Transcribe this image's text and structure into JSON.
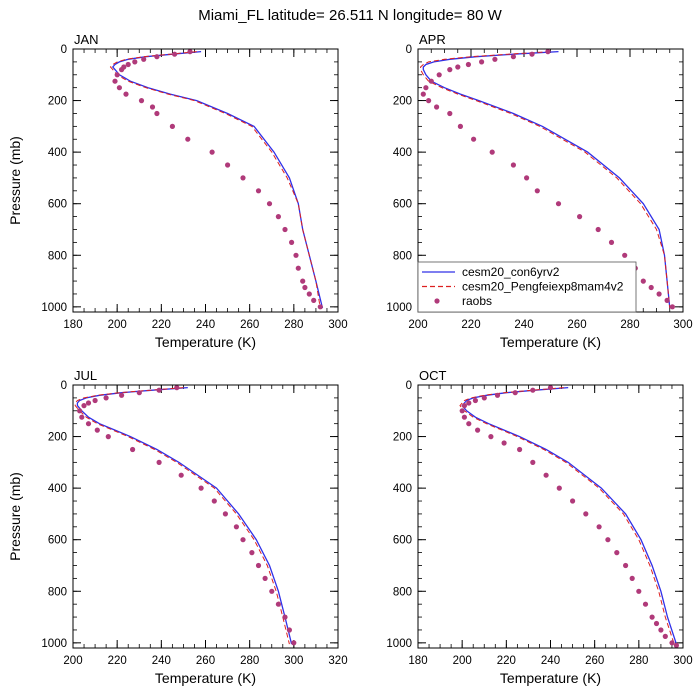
{
  "figure": {
    "title": "Miami_FL  latitude= 26.511 N longitude= 80 W"
  },
  "legend": {
    "panel": 1,
    "entries": [
      {
        "label": "cesm20_con6yrv2",
        "style": "solid",
        "color": "#3030e8"
      },
      {
        "label": "cesm20_Pengfeiexp8mam4v2",
        "style": "dashed",
        "color": "#dd2020"
      },
      {
        "label": "raobs",
        "style": "marker",
        "color": "#b03a7a"
      }
    ]
  },
  "chart_data": [
    {
      "type": "line",
      "title": "JAN",
      "xlabel": "Temperature (K)",
      "ylabel": "Pressure (mb)",
      "xlim": [
        180,
        300
      ],
      "ylim": [
        1020,
        0
      ],
      "xticks": [
        180,
        200,
        220,
        240,
        260,
        280,
        300
      ],
      "yticks": [
        0,
        200,
        400,
        600,
        800,
        1000
      ],
      "series": [
        {
          "name": "cesm20_con6yrv2",
          "x": [
            238,
            225,
            213,
            205,
            201,
            199,
            198,
            199,
            201,
            206,
            214,
            224,
            236,
            250,
            262,
            271,
            278,
            282,
            284,
            287,
            290,
            293
          ],
          "y": [
            10,
            20,
            30,
            40,
            50,
            60,
            70,
            80,
            100,
            125,
            150,
            175,
            200,
            250,
            300,
            400,
            500,
            600,
            700,
            800,
            900,
            1005
          ]
        },
        {
          "name": "cesm20_Pengfeiexp8mam4v2",
          "x": [
            236,
            224,
            212,
            204,
            200,
            198,
            197,
            198,
            200,
            205,
            213,
            223,
            235,
            249,
            261,
            270,
            277,
            282,
            284,
            287,
            290,
            292
          ],
          "y": [
            10,
            20,
            30,
            40,
            50,
            60,
            70,
            80,
            100,
            125,
            150,
            175,
            200,
            250,
            300,
            400,
            500,
            600,
            700,
            800,
            900,
            1005
          ]
        },
        {
          "name": "raobs",
          "x": [
            233,
            226,
            218,
            212,
            208,
            205,
            203,
            202,
            200,
            199,
            201,
            204,
            211,
            216,
            218,
            225,
            232,
            243,
            250,
            257,
            264,
            269,
            273,
            276,
            279,
            281,
            282,
            284,
            285,
            287,
            289,
            292
          ],
          "y": [
            10,
            20,
            30,
            40,
            50,
            60,
            70,
            80,
            100,
            125,
            150,
            175,
            200,
            225,
            250,
            300,
            350,
            400,
            450,
            500,
            550,
            600,
            650,
            700,
            750,
            800,
            850,
            900,
            925,
            950,
            975,
            1000
          ]
        }
      ]
    },
    {
      "type": "line",
      "title": "APR",
      "xlabel": "Temperature (K)",
      "ylabel": "",
      "xlim": [
        200,
        300
      ],
      "ylim": [
        1020,
        0
      ],
      "xticks": [
        200,
        220,
        240,
        260,
        280,
        300
      ],
      "yticks": [
        0,
        200,
        400,
        600,
        800,
        1000
      ],
      "series": [
        {
          "name": "cesm20_con6yrv2",
          "x": [
            253,
            236,
            222,
            212,
            206,
            203,
            202,
            202,
            203,
            205,
            210,
            216,
            223,
            236,
            247,
            264,
            276,
            285,
            291,
            293,
            294,
            295
          ],
          "y": [
            10,
            20,
            30,
            40,
            50,
            60,
            70,
            80,
            100,
            125,
            150,
            175,
            200,
            250,
            300,
            400,
            500,
            600,
            700,
            800,
            900,
            1005
          ]
        },
        {
          "name": "cesm20_Pengfeiexp8mam4v2",
          "x": [
            250,
            234,
            220,
            210,
            204,
            202,
            201,
            201,
            202,
            204,
            209,
            215,
            222,
            235,
            246,
            263,
            275,
            284,
            290,
            293,
            294,
            295
          ],
          "y": [
            10,
            20,
            30,
            40,
            50,
            60,
            70,
            80,
            100,
            125,
            150,
            175,
            200,
            250,
            300,
            400,
            500,
            600,
            700,
            800,
            900,
            1005
          ]
        },
        {
          "name": "raobs",
          "x": [
            249,
            243,
            236,
            229,
            224,
            219,
            215,
            212,
            208,
            205,
            203,
            202,
            204,
            207,
            212,
            216,
            221,
            228,
            236,
            241,
            245,
            253,
            261,
            268,
            273,
            278,
            282,
            285,
            288,
            291,
            294,
            296
          ],
          "y": [
            10,
            20,
            30,
            40,
            50,
            60,
            70,
            80,
            100,
            125,
            150,
            175,
            200,
            225,
            250,
            300,
            350,
            400,
            450,
            500,
            550,
            600,
            650,
            700,
            750,
            800,
            850,
            900,
            925,
            950,
            975,
            1000
          ]
        }
      ]
    },
    {
      "type": "line",
      "title": "JUL",
      "xlabel": "Temperature (K)",
      "ylabel": "Pressure (mb)",
      "xlim": [
        200,
        320
      ],
      "ylim": [
        1020,
        0
      ],
      "xticks": [
        200,
        220,
        240,
        260,
        280,
        300,
        320
      ],
      "yticks": [
        0,
        200,
        400,
        600,
        800,
        1000
      ],
      "series": [
        {
          "name": "cesm20_con6yrv2",
          "x": [
            252,
            236,
            222,
            212,
            206,
            203,
            202,
            202,
            204,
            207,
            212,
            219,
            226,
            238,
            248,
            265,
            275,
            283,
            289,
            293,
            296,
            299
          ],
          "y": [
            10,
            20,
            30,
            40,
            50,
            60,
            70,
            80,
            100,
            125,
            150,
            175,
            200,
            250,
            300,
            400,
            500,
            600,
            700,
            800,
            900,
            1005
          ]
        },
        {
          "name": "cesm20_Pengfeiexp8mam4v2",
          "x": [
            250,
            235,
            221,
            211,
            205,
            202,
            201,
            201,
            203,
            206,
            211,
            218,
            225,
            237,
            247,
            264,
            274,
            282,
            288,
            292,
            295,
            298
          ],
          "y": [
            10,
            20,
            30,
            40,
            50,
            60,
            70,
            80,
            100,
            125,
            150,
            175,
            200,
            250,
            300,
            400,
            500,
            600,
            700,
            800,
            900,
            1005
          ]
        },
        {
          "name": "raobs",
          "x": [
            247,
            239,
            230,
            222,
            215,
            210,
            207,
            205,
            203,
            204,
            207,
            211,
            216,
            227,
            239,
            249,
            258,
            264,
            269,
            274,
            277,
            281,
            284,
            287,
            290,
            293,
            296,
            298,
            300
          ],
          "y": [
            10,
            20,
            30,
            40,
            50,
            60,
            70,
            80,
            100,
            125,
            150,
            175,
            200,
            250,
            300,
            350,
            400,
            450,
            500,
            550,
            600,
            650,
            700,
            750,
            800,
            850,
            900,
            950,
            1000
          ]
        }
      ]
    },
    {
      "type": "line",
      "title": "OCT",
      "xlabel": "Temperature (K)",
      "ylabel": "",
      "xlim": [
        180,
        300
      ],
      "ylim": [
        1020,
        0
      ],
      "xticks": [
        180,
        200,
        220,
        240,
        260,
        280,
        300
      ],
      "yticks": [
        0,
        200,
        400,
        600,
        800,
        1000
      ],
      "series": [
        {
          "name": "cesm20_con6yrv2",
          "x": [
            248,
            233,
            220,
            211,
            205,
            202,
            201,
            200,
            202,
            206,
            212,
            219,
            226,
            238,
            248,
            263,
            274,
            281,
            286,
            290,
            293,
            297
          ],
          "y": [
            10,
            20,
            30,
            40,
            50,
            60,
            70,
            80,
            100,
            125,
            150,
            175,
            200,
            250,
            300,
            400,
            500,
            600,
            700,
            800,
            900,
            1005
          ]
        },
        {
          "name": "cesm20_Pengfeiexp8mam4v2",
          "x": [
            246,
            232,
            219,
            210,
            204,
            201,
            200,
            199,
            201,
            205,
            211,
            218,
            225,
            237,
            247,
            262,
            273,
            280,
            285,
            289,
            292,
            296
          ],
          "y": [
            10,
            20,
            30,
            40,
            50,
            60,
            70,
            80,
            100,
            125,
            150,
            175,
            200,
            250,
            300,
            400,
            500,
            600,
            700,
            800,
            900,
            1005
          ]
        },
        {
          "name": "raobs",
          "x": [
            240,
            232,
            224,
            216,
            210,
            206,
            203,
            201,
            200,
            201,
            203,
            207,
            213,
            219,
            226,
            232,
            238,
            244,
            250,
            256,
            262,
            266,
            270,
            274,
            277,
            280,
            283,
            286,
            288,
            290,
            292,
            295,
            297
          ],
          "y": [
            10,
            20,
            30,
            40,
            50,
            60,
            70,
            80,
            100,
            125,
            150,
            175,
            200,
            225,
            250,
            300,
            350,
            400,
            450,
            500,
            550,
            600,
            650,
            700,
            750,
            800,
            850,
            900,
            925,
            950,
            975,
            1000,
            1010
          ]
        }
      ]
    }
  ]
}
